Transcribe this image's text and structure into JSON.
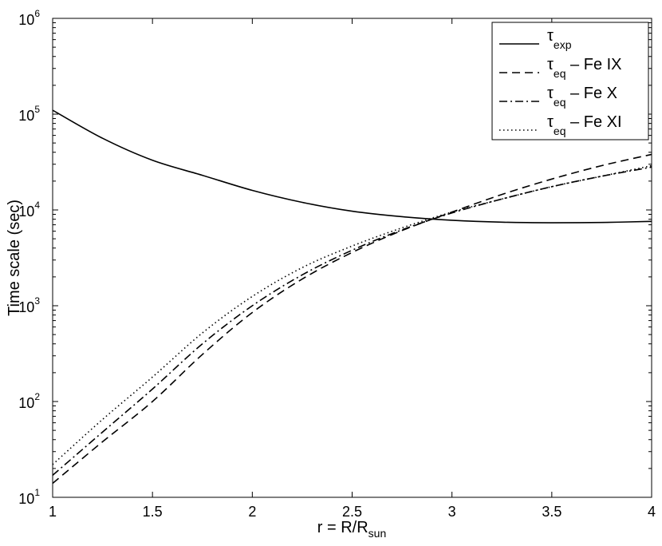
{
  "chart_data": {
    "type": "line",
    "xlabel": {
      "prefix": "r = R/R",
      "sub": "sun"
    },
    "ylabel": "Time scale (sec)",
    "xlim": [
      1,
      4
    ],
    "ylim": [
      10,
      1000000
    ],
    "yscale": "log",
    "x_ticks": [
      "1",
      "1.5",
      "2",
      "2.5",
      "3",
      "3.5",
      "4"
    ],
    "y_ticks": [
      {
        "base": "10",
        "exp": "1",
        "value": 10
      },
      {
        "base": "10",
        "exp": "2",
        "value": 100
      },
      {
        "base": "10",
        "exp": "3",
        "value": 1000
      },
      {
        "base": "10",
        "exp": "4",
        "value": 10000
      },
      {
        "base": "10",
        "exp": "5",
        "value": 100000
      },
      {
        "base": "10",
        "exp": "6",
        "value": 1000000
      }
    ],
    "grid": false,
    "legend_position": "top-right",
    "series": [
      {
        "legend_symbol": "τ",
        "legend_sub": "exp",
        "legend_suffix": "",
        "dash": "solid",
        "x": [
          1,
          1.25,
          1.5,
          1.75,
          2,
          2.25,
          2.5,
          2.75,
          3,
          3.25,
          3.5,
          3.75,
          4
        ],
        "y": [
          110000,
          56000,
          33000,
          23000,
          16000,
          12000,
          9700,
          8500,
          7800,
          7450,
          7350,
          7400,
          7600
        ]
      },
      {
        "legend_symbol": "τ",
        "legend_sub": "eq",
        "legend_suffix": " – Fe IX",
        "dash": "dashed",
        "x": [
          1,
          1.25,
          1.5,
          1.75,
          2,
          2.25,
          2.5,
          2.75,
          3,
          3.25,
          3.5,
          3.75,
          4
        ],
        "y": [
          14,
          38,
          100,
          310,
          850,
          1900,
          3600,
          6100,
          9500,
          14500,
          21000,
          29000,
          38000
        ]
      },
      {
        "legend_symbol": "τ",
        "legend_sub": "eq",
        "legend_suffix": " – Fe X",
        "dash": "dashdot",
        "x": [
          1,
          1.25,
          1.5,
          1.75,
          2,
          2.25,
          2.5,
          2.75,
          3,
          3.25,
          3.5,
          3.75,
          4
        ],
        "y": [
          17,
          48,
          135,
          400,
          1000,
          2100,
          3800,
          6200,
          9300,
          13000,
          17500,
          22500,
          28000
        ]
      },
      {
        "legend_symbol": "τ",
        "legend_sub": "eq",
        "legend_suffix": " – Fe XI",
        "dash": "dotted",
        "x": [
          1,
          1.25,
          1.5,
          1.75,
          2,
          2.25,
          2.5,
          2.75,
          3,
          3.25,
          3.5,
          3.75,
          4
        ],
        "y": [
          22,
          65,
          180,
          520,
          1250,
          2500,
          4200,
          6500,
          9500,
          13000,
          17500,
          22500,
          29000
        ]
      }
    ]
  }
}
